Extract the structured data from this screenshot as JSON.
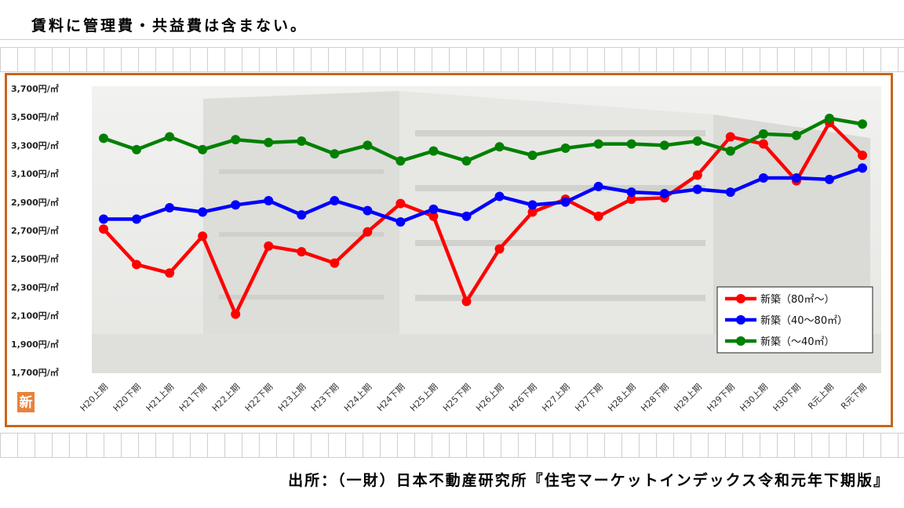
{
  "note": "賃料に管理費・共益費は含まない。",
  "source": "出所：（一財）日本不動産研究所『住宅マーケットインデックス令和元年下期版』",
  "badge": "新",
  "colors": {
    "frame": "#c8651b",
    "badge": "#e8823a"
  },
  "chart_data": {
    "type": "line",
    "categories": [
      "H20上期",
      "H20下期",
      "H21上期",
      "H21下期",
      "H22上期",
      "H22下期",
      "H23上期",
      "H23下期",
      "H24上期",
      "H24下期",
      "H25上期",
      "H25下期",
      "H26上期",
      "H26下期",
      "H27上期",
      "H27下期",
      "H28上期",
      "H28下期",
      "H29上期",
      "H29下期",
      "H30上期",
      "H30下期",
      "R元上期",
      "R元下期"
    ],
    "y_ticks": [
      "3,700円/㎡",
      "3,500円/㎡",
      "3,300円/㎡",
      "3,100円/㎡",
      "2,900円/㎡",
      "2,700円/㎡",
      "2,500円/㎡",
      "2,300円/㎡",
      "2,100円/㎡",
      "1,900円/㎡",
      "1,700円/㎡"
    ],
    "ylim": [
      1700,
      3700
    ],
    "legend_position": "bottom-right",
    "grid": false,
    "series": [
      {
        "name": "新築（80㎡～）",
        "color": "#ff0000",
        "values": [
          2710,
          2460,
          2400,
          2660,
          2110,
          2590,
          2550,
          2470,
          2690,
          2890,
          2800,
          2200,
          2570,
          2830,
          2920,
          2800,
          2920,
          2930,
          3090,
          3360,
          3310,
          3050,
          3460,
          3230
        ]
      },
      {
        "name": "新築（40～80㎡）",
        "color": "#0000ff",
        "values": [
          2780,
          2780,
          2860,
          2830,
          2880,
          2910,
          2810,
          2910,
          2840,
          2760,
          2850,
          2800,
          2940,
          2880,
          2900,
          3010,
          2970,
          2960,
          2990,
          2970,
          3070,
          3070,
          3060,
          3140
        ]
      },
      {
        "name": "新築（～40㎡）",
        "color": "#008000",
        "values": [
          3350,
          3270,
          3360,
          3270,
          3340,
          3320,
          3330,
          3240,
          3300,
          3190,
          3260,
          3190,
          3290,
          3230,
          3280,
          3310,
          3310,
          3300,
          3330,
          3260,
          3380,
          3370,
          3490,
          3450
        ]
      }
    ]
  }
}
